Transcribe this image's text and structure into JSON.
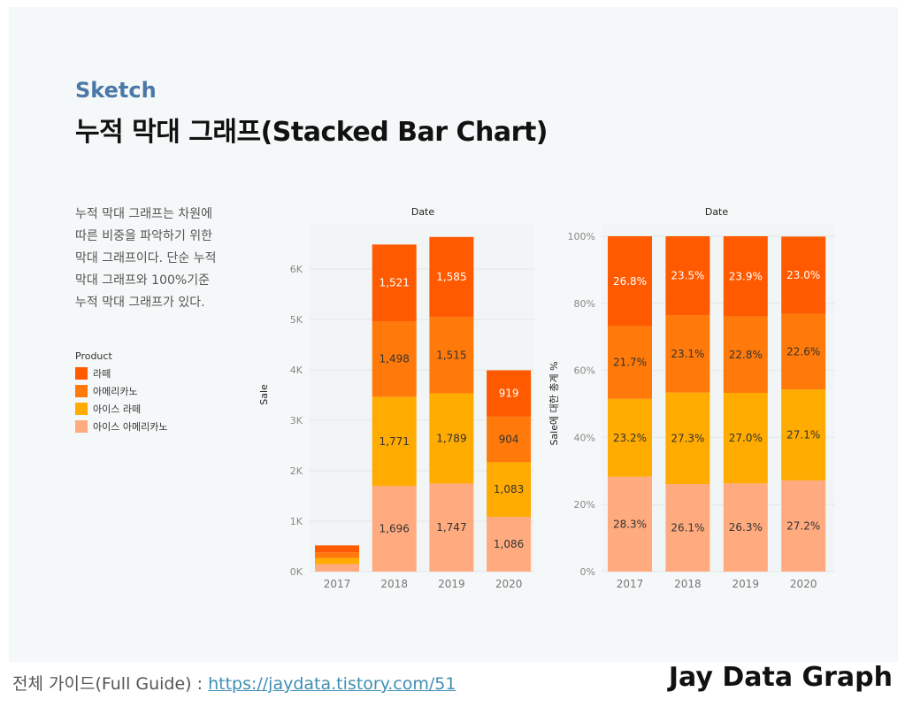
{
  "header": {
    "subtitle": "Sketch",
    "title": "누적 막대 그래프(Stacked Bar Chart)"
  },
  "description": {
    "lines": [
      "누적 막대 그래프는 차원에",
      "따른 비중을 파악하기 위한",
      "막대 그래프이다. 단순 누적",
      "막대 그래프와 100%기준",
      "누적 막대 그래프가 있다."
    ]
  },
  "legend": {
    "title": "Product",
    "items": [
      {
        "label": "라떼",
        "color": "#ff5a00"
      },
      {
        "label": "아메리카노",
        "color": "#ff7a0a"
      },
      {
        "label": "아이스 라떼",
        "color": "#ffab00"
      },
      {
        "label": "아이스 아메리카노",
        "color": "#ffab7f"
      }
    ]
  },
  "footer": {
    "guide_label": "전체 가이드(Full Guide) : ",
    "guide_link": "https://jaydata.tistory.com/51",
    "brand": "Jay Data Graph"
  },
  "chart_data": [
    {
      "type": "bar",
      "stacked": true,
      "title": "Date",
      "xlabel": "",
      "ylabel": "Sale",
      "ylim": [
        0,
        6650
      ],
      "yticks": [
        0,
        1000,
        2000,
        3000,
        4000,
        5000,
        6000
      ],
      "ytick_labels": [
        "0K",
        "1K",
        "2K",
        "3K",
        "4K",
        "5K",
        "6K"
      ],
      "categories": [
        "2017",
        "2018",
        "2019",
        "2020"
      ],
      "series": [
        {
          "name": "아이스 아메리카노",
          "color": "#ffab7f",
          "values": [
            150,
            1696,
            1747,
            1086
          ],
          "labels": [
            "",
            "1,696",
            "1,747",
            "1,086"
          ],
          "text_color": "#333333"
        },
        {
          "name": "아이스 라떼",
          "color": "#ffab00",
          "values": [
            120,
            1771,
            1789,
            1083
          ],
          "labels": [
            "",
            "1,771",
            "1,789",
            "1,083"
          ],
          "text_color": "#333333"
        },
        {
          "name": "아메리카노",
          "color": "#ff7a0a",
          "values": [
            110,
            1498,
            1515,
            904
          ],
          "labels": [
            "",
            "1,498",
            "1,515",
            "904"
          ],
          "text_color": "#333333"
        },
        {
          "name": "라떼",
          "color": "#ff5a00",
          "values": [
            140,
            1521,
            1585,
            919
          ],
          "labels": [
            "",
            "1,521",
            "1,585",
            "919"
          ],
          "text_color": "#ffffff"
        }
      ]
    },
    {
      "type": "bar",
      "stacked": true,
      "title": "Date",
      "xlabel": "",
      "ylabel": "Sale에 대한 총계 %",
      "ylim": [
        0,
        100
      ],
      "yticks": [
        0,
        20,
        40,
        60,
        80,
        100
      ],
      "ytick_labels": [
        "0%",
        "20%",
        "40%",
        "60%",
        "80%",
        "100%"
      ],
      "categories": [
        "2017",
        "2018",
        "2019",
        "2020"
      ],
      "series": [
        {
          "name": "아이스 아메리카노",
          "color": "#ffab7f",
          "values": [
            28.3,
            26.1,
            26.3,
            27.2
          ],
          "labels": [
            "28.3%",
            "26.1%",
            "26.3%",
            "27.2%"
          ],
          "text_color": "#333333"
        },
        {
          "name": "아이스 라떼",
          "color": "#ffab00",
          "values": [
            23.2,
            27.3,
            27.0,
            27.1
          ],
          "labels": [
            "23.2%",
            "27.3%",
            "27.0%",
            "27.1%"
          ],
          "text_color": "#333333"
        },
        {
          "name": "아메리카노",
          "color": "#ff7a0a",
          "values": [
            21.7,
            23.1,
            22.8,
            22.6
          ],
          "labels": [
            "21.7%",
            "23.1%",
            "22.8%",
            "22.6%"
          ],
          "text_color": "#333333"
        },
        {
          "name": "라떼",
          "color": "#ff5a00",
          "values": [
            26.8,
            23.5,
            23.9,
            23.0
          ],
          "labels": [
            "26.8%",
            "23.5%",
            "23.9%",
            "23.0%"
          ],
          "text_color": "#ffffff"
        }
      ]
    }
  ]
}
